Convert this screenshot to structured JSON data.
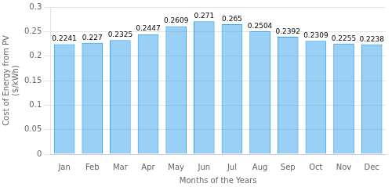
{
  "chart_data": {
    "type": "bar",
    "categories": [
      "Jan",
      "Feb",
      "Mar",
      "Apr",
      "May",
      "Jun",
      "Jul",
      "Aug",
      "Sep",
      "Oct",
      "Nov",
      "Dec"
    ],
    "values": [
      0.2241,
      0.227,
      0.2325,
      0.2447,
      0.2609,
      0.271,
      0.265,
      0.2504,
      0.2392,
      0.2309,
      0.2255,
      0.2238
    ],
    "xlabel": "Months of the Years",
    "ylabel": "Cost of Energy from PV\n($/kWh)",
    "ylim": [
      0,
      0.3
    ],
    "yticks": [
      0,
      0.05,
      0.1,
      0.15,
      0.2,
      0.25,
      0.3
    ],
    "grid": true,
    "data_labels": true
  }
}
